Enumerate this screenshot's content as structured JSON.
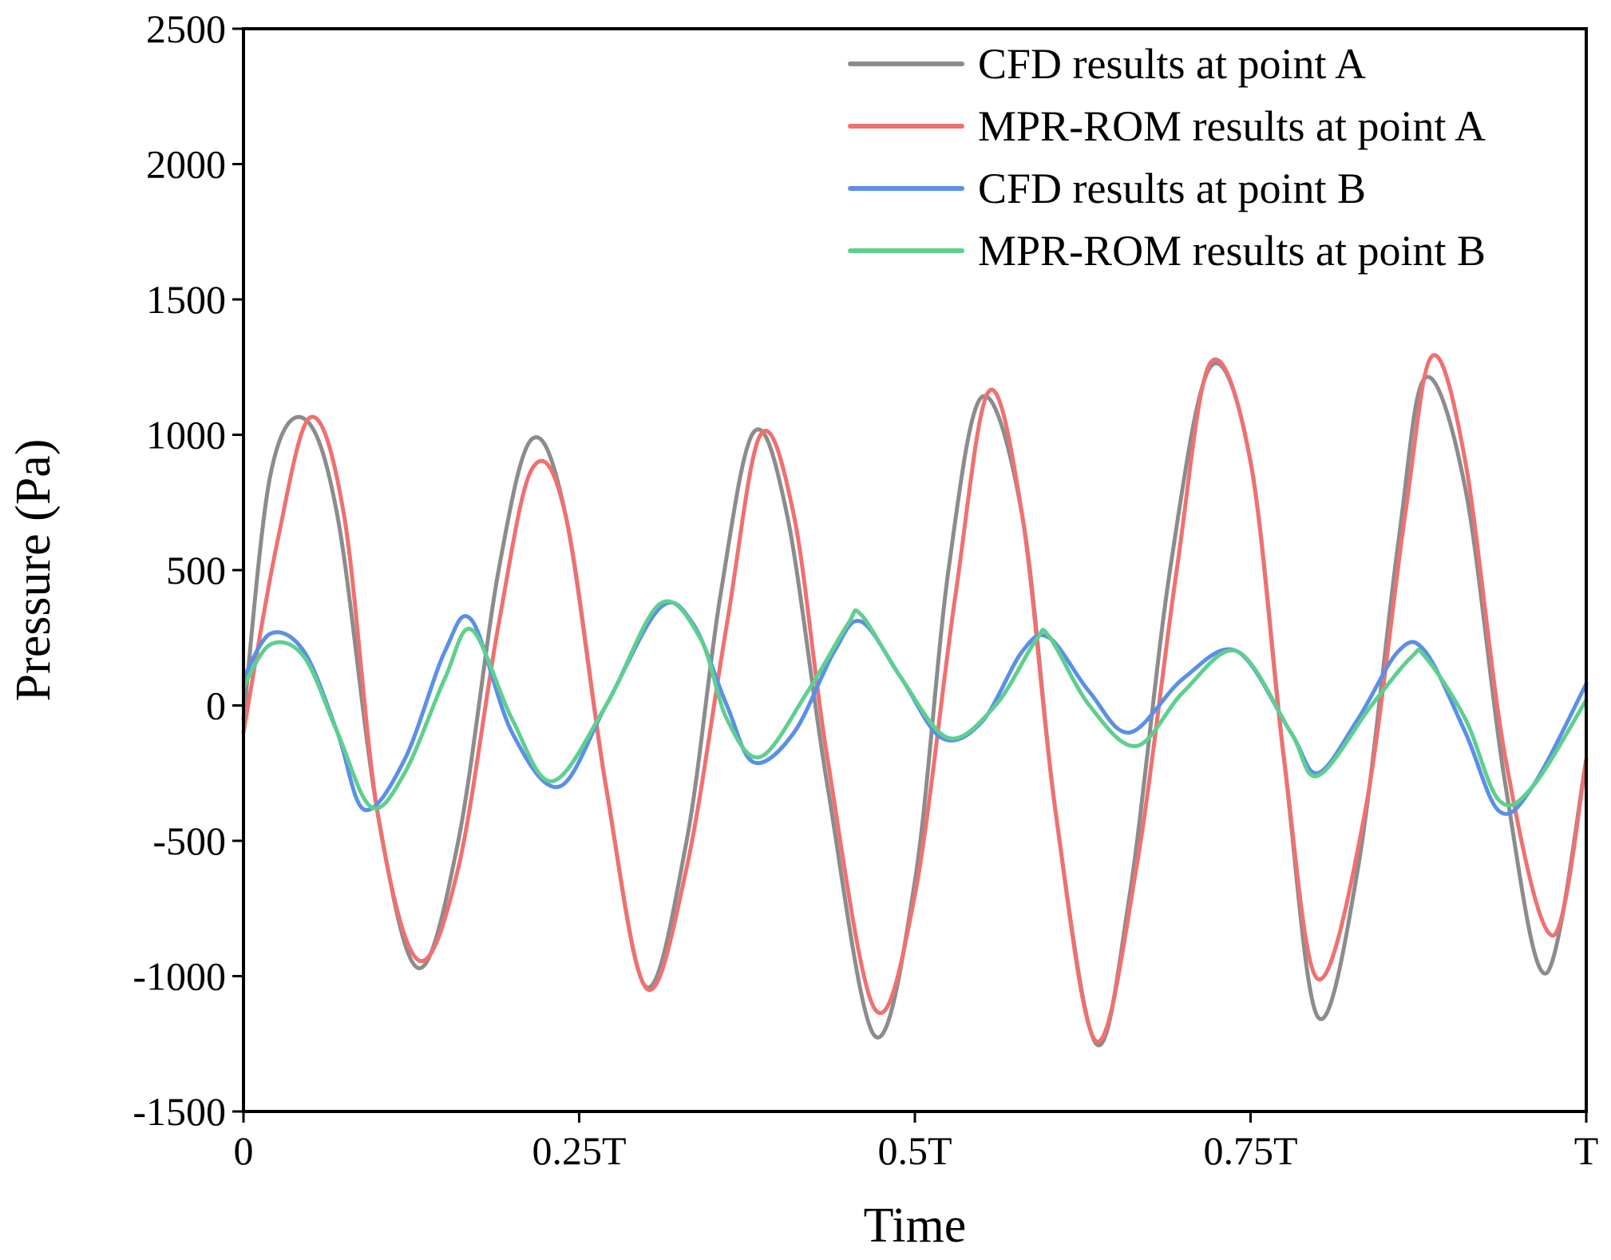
{
  "chart_data": {
    "type": "line",
    "title": "",
    "xlabel": "Time",
    "ylabel": "Pressure (Pa)",
    "xlim": [
      0,
      1
    ],
    "ylim": [
      -1500,
      2500
    ],
    "grid": false,
    "legend_position": "top-right",
    "x_ticks": [
      {
        "value": 0,
        "label": "0"
      },
      {
        "value": 0.25,
        "label": "0.25T"
      },
      {
        "value": 0.5,
        "label": "0.5T"
      },
      {
        "value": 0.75,
        "label": "0.75T"
      },
      {
        "value": 1,
        "label": "T"
      }
    ],
    "y_ticks": [
      {
        "value": 2500,
        "label": "2500"
      },
      {
        "value": 2000,
        "label": "2000"
      },
      {
        "value": 1500,
        "label": "1500"
      },
      {
        "value": 1000,
        "label": "1000"
      },
      {
        "value": 500,
        "label": "500"
      },
      {
        "value": 0,
        "label": "0"
      },
      {
        "value": -500,
        "label": "-500"
      },
      {
        "value": -1000,
        "label": "-1000"
      },
      {
        "value": -1500,
        "label": "-1500"
      }
    ],
    "series": [
      {
        "name": "CFD results at point A",
        "color": "#8c8c8c",
        "points": [
          [
            0,
            -50
          ],
          [
            0.02,
            850
          ],
          [
            0.045,
            1060
          ],
          [
            0.07,
            700
          ],
          [
            0.1,
            -400
          ],
          [
            0.13,
            -970
          ],
          [
            0.16,
            -500
          ],
          [
            0.19,
            500
          ],
          [
            0.215,
            985
          ],
          [
            0.24,
            700
          ],
          [
            0.27,
            -300
          ],
          [
            0.3,
            -1040
          ],
          [
            0.33,
            -500
          ],
          [
            0.355,
            400
          ],
          [
            0.38,
            1010
          ],
          [
            0.405,
            700
          ],
          [
            0.435,
            -300
          ],
          [
            0.47,
            -1220
          ],
          [
            0.5,
            -650
          ],
          [
            0.525,
            500
          ],
          [
            0.55,
            1140
          ],
          [
            0.58,
            700
          ],
          [
            0.605,
            -400
          ],
          [
            0.635,
            -1250
          ],
          [
            0.66,
            -700
          ],
          [
            0.69,
            500
          ],
          [
            0.72,
            1250
          ],
          [
            0.75,
            900
          ],
          [
            0.775,
            -200
          ],
          [
            0.8,
            -1150
          ],
          [
            0.83,
            -600
          ],
          [
            0.86,
            600
          ],
          [
            0.88,
            1210
          ],
          [
            0.91,
            800
          ],
          [
            0.94,
            -300
          ],
          [
            0.97,
            -990
          ],
          [
            1.0,
            -200
          ]
        ]
      },
      {
        "name": "MPR-ROM results at point A",
        "color": "#f07070",
        "points": [
          [
            0,
            -100
          ],
          [
            0.025,
            600
          ],
          [
            0.05,
            1065
          ],
          [
            0.075,
            700
          ],
          [
            0.1,
            -400
          ],
          [
            0.13,
            -940
          ],
          [
            0.16,
            -600
          ],
          [
            0.19,
            300
          ],
          [
            0.215,
            875
          ],
          [
            0.24,
            700
          ],
          [
            0.27,
            -300
          ],
          [
            0.3,
            -1045
          ],
          [
            0.33,
            -600
          ],
          [
            0.36,
            300
          ],
          [
            0.385,
            1000
          ],
          [
            0.41,
            700
          ],
          [
            0.435,
            -200
          ],
          [
            0.47,
            -1120
          ],
          [
            0.5,
            -700
          ],
          [
            0.53,
            400
          ],
          [
            0.555,
            1160
          ],
          [
            0.58,
            700
          ],
          [
            0.605,
            -400
          ],
          [
            0.635,
            -1240
          ],
          [
            0.665,
            -600
          ],
          [
            0.695,
            500
          ],
          [
            0.72,
            1265
          ],
          [
            0.75,
            900
          ],
          [
            0.775,
            -200
          ],
          [
            0.8,
            -1010
          ],
          [
            0.835,
            -400
          ],
          [
            0.865,
            700
          ],
          [
            0.885,
            1290
          ],
          [
            0.91,
            900
          ],
          [
            0.94,
            -200
          ],
          [
            0.975,
            -850
          ],
          [
            1.0,
            -200
          ]
        ]
      },
      {
        "name": "CFD results at point B",
        "color": "#5b8fe8",
        "points": [
          [
            0,
            100
          ],
          [
            0.02,
            265
          ],
          [
            0.045,
            200
          ],
          [
            0.07,
            -100
          ],
          [
            0.09,
            -385
          ],
          [
            0.12,
            -200
          ],
          [
            0.15,
            200
          ],
          [
            0.17,
            315
          ],
          [
            0.2,
            -100
          ],
          [
            0.235,
            -300
          ],
          [
            0.27,
            0
          ],
          [
            0.31,
            360
          ],
          [
            0.335,
            300
          ],
          [
            0.36,
            0
          ],
          [
            0.38,
            -210
          ],
          [
            0.41,
            -100
          ],
          [
            0.44,
            200
          ],
          [
            0.46,
            310
          ],
          [
            0.49,
            100
          ],
          [
            0.52,
            -120
          ],
          [
            0.55,
            -60
          ],
          [
            0.58,
            200
          ],
          [
            0.6,
            250
          ],
          [
            0.63,
            50
          ],
          [
            0.66,
            -100
          ],
          [
            0.7,
            100
          ],
          [
            0.74,
            200
          ],
          [
            0.78,
            -100
          ],
          [
            0.8,
            -250
          ],
          [
            0.83,
            -50
          ],
          [
            0.86,
            200
          ],
          [
            0.88,
            200
          ],
          [
            0.91,
            -100
          ],
          [
            0.935,
            -390
          ],
          [
            0.96,
            -300
          ],
          [
            1.0,
            80
          ]
        ]
      },
      {
        "name": "MPR-ROM results at point B",
        "color": "#5fcf8f",
        "points": [
          [
            0,
            70
          ],
          [
            0.02,
            225
          ],
          [
            0.045,
            180
          ],
          [
            0.07,
            -100
          ],
          [
            0.095,
            -375
          ],
          [
            0.12,
            -250
          ],
          [
            0.15,
            100
          ],
          [
            0.17,
            280
          ],
          [
            0.2,
            -50
          ],
          [
            0.23,
            -280
          ],
          [
            0.27,
            0
          ],
          [
            0.31,
            375
          ],
          [
            0.34,
            250
          ],
          [
            0.36,
            -50
          ],
          [
            0.385,
            -190
          ],
          [
            0.42,
            50
          ],
          [
            0.45,
            300
          ],
          [
            0.46,
            335
          ],
          [
            0.49,
            100
          ],
          [
            0.525,
            -120
          ],
          [
            0.56,
            0
          ],
          [
            0.59,
            240
          ],
          [
            0.6,
            255
          ],
          [
            0.63,
            0
          ],
          [
            0.665,
            -150
          ],
          [
            0.7,
            50
          ],
          [
            0.74,
            200
          ],
          [
            0.78,
            -100
          ],
          [
            0.8,
            -260
          ],
          [
            0.84,
            0
          ],
          [
            0.87,
            180
          ],
          [
            0.88,
            180
          ],
          [
            0.91,
            -50
          ],
          [
            0.935,
            -350
          ],
          [
            0.96,
            -300
          ],
          [
            1.0,
            20
          ]
        ]
      }
    ]
  }
}
